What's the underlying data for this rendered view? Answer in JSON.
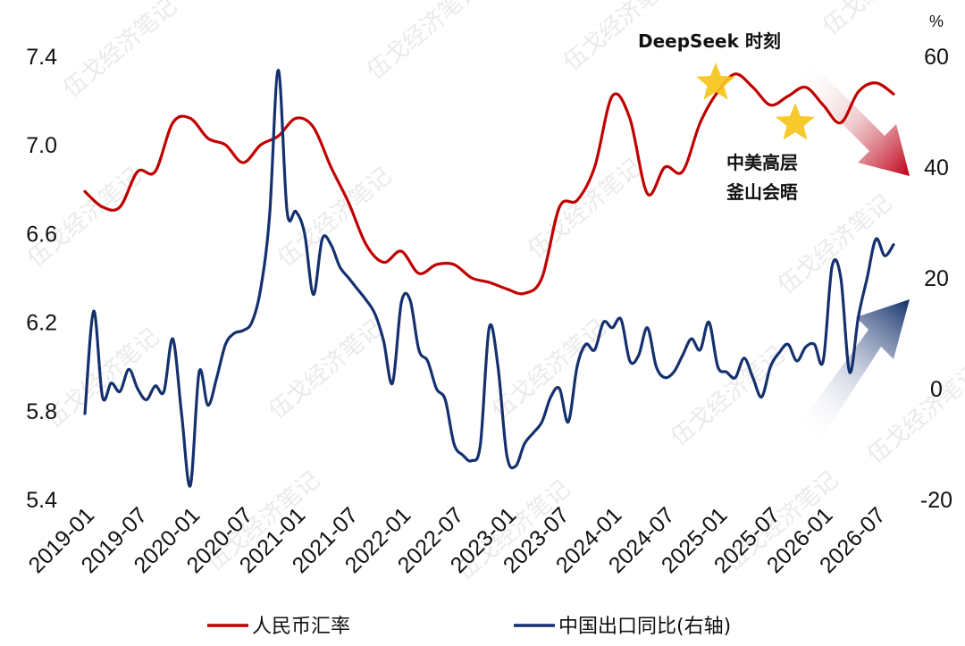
{
  "chart_data": {
    "type": "line",
    "left_axis": {
      "ticks": [
        "7.4",
        "7.0",
        "6.6",
        "6.2",
        "5.8",
        "5.4"
      ],
      "ylim": [
        5.4,
        7.4
      ]
    },
    "right_axis": {
      "unit": "%",
      "ticks": [
        "60",
        "40",
        "20",
        "0",
        "-20"
      ],
      "ylim": [
        -20,
        60
      ]
    },
    "x_ticks": [
      "2019-01",
      "2019-07",
      "2020-01",
      "2020-07",
      "2021-01",
      "2021-07",
      "2022-01",
      "2022-07",
      "2023-01",
      "2023-07",
      "2024-01",
      "2024-07",
      "2025-01",
      "2025-07",
      "2026-01",
      "2026-07"
    ],
    "series": [
      {
        "name": "人民币汇率",
        "axis": "left",
        "color": "#c00000",
        "x": [
          0,
          2,
          4,
          6,
          8,
          10,
          12,
          14,
          16,
          18,
          20,
          22,
          24,
          26,
          28,
          30,
          32,
          34,
          36,
          38,
          40,
          42,
          44,
          46,
          48,
          50,
          52,
          54,
          56,
          58,
          60,
          62,
          64,
          66,
          68,
          70,
          72,
          74,
          76,
          78,
          80,
          82,
          84,
          86,
          88,
          90,
          92
        ],
        "y": [
          6.79,
          6.72,
          6.72,
          6.88,
          6.88,
          7.1,
          7.12,
          7.03,
          7.0,
          6.92,
          7.0,
          7.04,
          7.12,
          7.08,
          6.9,
          6.74,
          6.55,
          6.47,
          6.52,
          6.42,
          6.46,
          6.46,
          6.4,
          6.38,
          6.35,
          6.33,
          6.4,
          6.72,
          6.75,
          6.9,
          7.22,
          7.12,
          6.78,
          6.9,
          6.88,
          7.1,
          7.24,
          7.32,
          7.26,
          7.18,
          7.22,
          7.26,
          7.18,
          7.1,
          7.24,
          7.28,
          7.23
        ]
      },
      {
        "name": "中国出口同比(右轴)",
        "axis": "right",
        "color": "#14306e",
        "x": [
          0,
          1,
          2,
          3,
          4,
          5,
          6,
          7,
          8,
          9,
          10,
          11,
          12,
          13,
          14,
          15,
          16,
          17,
          18,
          19,
          20,
          21,
          22,
          23,
          24,
          25,
          26,
          27,
          28,
          29,
          30,
          31,
          32,
          33,
          34,
          35,
          36,
          37,
          38,
          39,
          40,
          41,
          42,
          43,
          44,
          45,
          46,
          47,
          48,
          49,
          50,
          51,
          52,
          53,
          54,
          55,
          56,
          57,
          58,
          59,
          60,
          61,
          62,
          63,
          64,
          65,
          66,
          67,
          68,
          69,
          70,
          71,
          72,
          73,
          74,
          75,
          76,
          77,
          78,
          79,
          80,
          81,
          82,
          83,
          84,
          85,
          86,
          87,
          88,
          89,
          90,
          91,
          92
        ],
        "y": [
          -4.5,
          14.0,
          -1.5,
          1.0,
          -0.5,
          3.5,
          0.0,
          -2.0,
          0.5,
          -0.5,
          9.0,
          -4.5,
          -17.5,
          3.0,
          -3.0,
          2.0,
          8.0,
          10.0,
          10.5,
          12.0,
          18.0,
          31.0,
          57.5,
          32.0,
          32.0,
          28.0,
          17.0,
          27.0,
          26.0,
          22.0,
          20.0,
          18.0,
          16.0,
          13.5,
          8.5,
          1.0,
          15.5,
          16.0,
          7.0,
          5.0,
          0.0,
          -2.0,
          -10.0,
          -12.0,
          -13.0,
          -10.0,
          11.0,
          4.0,
          -12.0,
          -14.0,
          -10.0,
          -8.0,
          -6.0,
          -1.5,
          0.0,
          -6.0,
          4.0,
          8.0,
          7.0,
          12.0,
          11.0,
          12.5,
          5.0,
          6.0,
          11.0,
          4.0,
          2.0,
          3.0,
          6.0,
          9.0,
          7.0,
          12.0,
          4.0,
          3.0,
          2.0,
          5.5,
          2.0,
          -1.5,
          4.0,
          6.5,
          8.0,
          5.0,
          7.5,
          8.0,
          5.0,
          22.0,
          20.0,
          3.0,
          13.0,
          20.0,
          27.0,
          24.0,
          26.0
        ]
      }
    ],
    "annotations": [
      "DeepSeek 时刻",
      "中美高层",
      "釜山会晤"
    ],
    "legend": [
      "人民币汇率",
      "中国出口同比(右轴)"
    ],
    "watermark": "伍戈经济笔记"
  }
}
